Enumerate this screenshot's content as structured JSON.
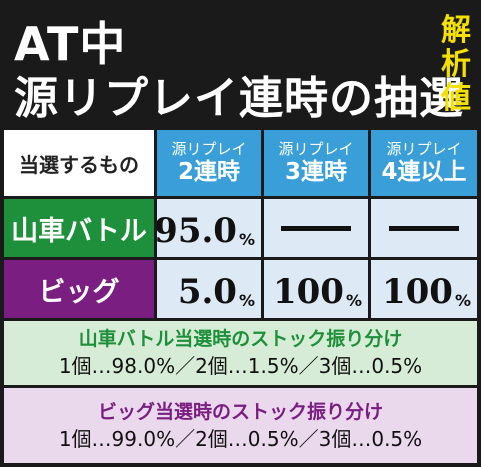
{
  "header": {
    "title_line1": "AT中",
    "title_line2": "源リプレイ連時の抽選",
    "badge": [
      "解",
      "析",
      "値"
    ]
  },
  "table": {
    "corner_label": "当選するもの",
    "columns": [
      {
        "small": "源リプレイ",
        "big": "2連時"
      },
      {
        "small": "源リプレイ",
        "big": "3連時"
      },
      {
        "small": "源リプレイ",
        "big": "4連以上"
      }
    ],
    "rows": [
      {
        "label": "山車バトル",
        "values": [
          {
            "num": "95.0",
            "pct": "%"
          },
          {
            "dash": true
          },
          {
            "dash": true
          }
        ]
      },
      {
        "label": "ビッグ",
        "values": [
          {
            "num": "5.0",
            "pct": "%"
          },
          {
            "num": "100",
            "pct": "%"
          },
          {
            "num": "100",
            "pct": "%"
          }
        ]
      }
    ]
  },
  "stock": {
    "battle": {
      "title": "山車バトル当選時のストック振り分け",
      "body": "1個…98.0%／2個…1.5%／3個…0.5%"
    },
    "big": {
      "title": "ビッグ当選時のストック振り分け",
      "body": "1個…99.0%／2個…0.5%／3個…0.5%"
    }
  },
  "colors": {
    "background": "#1a1a1a",
    "header_blue": "#3a9fd8",
    "battle_green": "#1e8f3a",
    "big_purple": "#7a1e82",
    "badge_yellow": "#f5e100"
  }
}
